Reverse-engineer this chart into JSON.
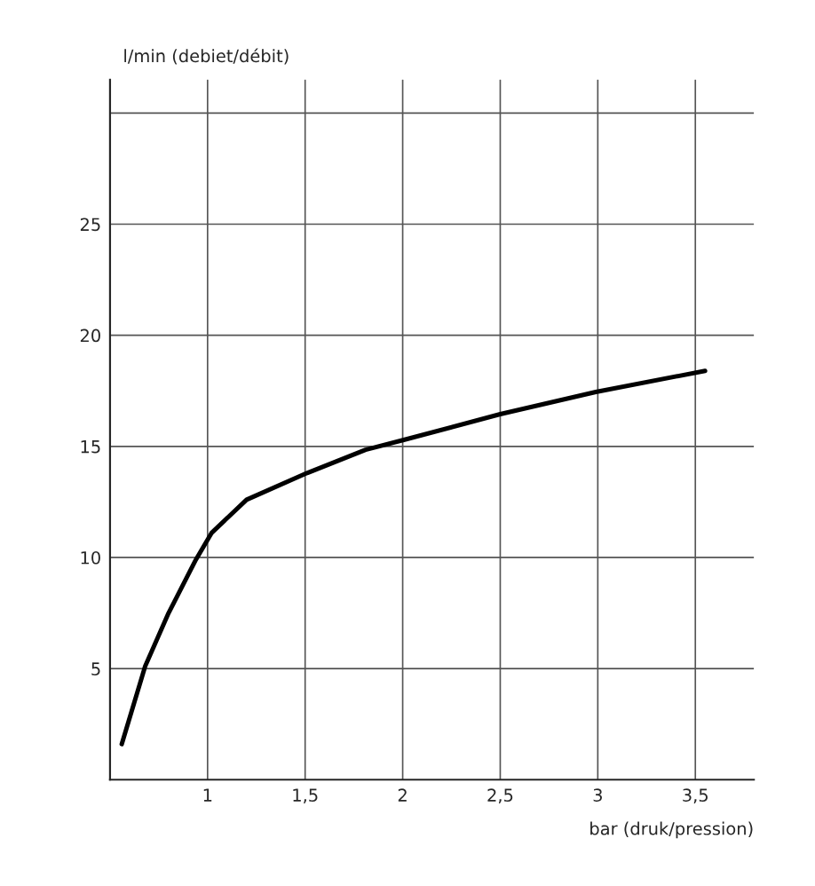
{
  "chart_data": {
    "type": "line",
    "xlabel": "bar (druk/pression)",
    "ylabel": "l/min (debiet/débit)",
    "x": [
      0.56,
      0.68,
      0.8,
      0.94,
      1.02,
      1.2,
      1.51,
      1.81,
      2.01,
      2.5,
      2.99,
      3.55
    ],
    "series": [
      {
        "color": "#000000",
        "values": [
          1.6,
          5.1,
          7.5,
          9.9,
          11.1,
          12.6,
          13.8,
          14.85,
          15.3,
          16.45,
          17.45,
          18.4
        ]
      }
    ],
    "xlim": [
      0.5,
      3.8
    ],
    "ylim": [
      0,
      31.5
    ],
    "xticks": [
      {
        "value": 1,
        "label": "1"
      },
      {
        "value": 1.5,
        "label": "1,5"
      },
      {
        "value": 2,
        "label": "2"
      },
      {
        "value": 2.5,
        "label": "2,5"
      },
      {
        "value": 3,
        "label": "3"
      },
      {
        "value": 3.5,
        "label": "3,5"
      }
    ],
    "yticks": [
      5,
      10,
      15,
      20,
      25,
      {
        "value": 30,
        "label": null
      }
    ],
    "grid": true,
    "marker": "none",
    "line_style": "solid"
  }
}
